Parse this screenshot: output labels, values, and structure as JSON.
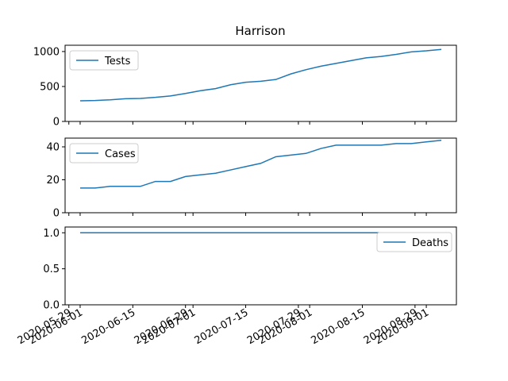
{
  "chart_data": {
    "type": "line",
    "title": "Harrison",
    "x": [
      "2020-06-01",
      "2020-06-05",
      "2020-06-09",
      "2020-06-13",
      "2020-06-17",
      "2020-06-21",
      "2020-06-25",
      "2020-06-29",
      "2020-07-03",
      "2020-07-07",
      "2020-07-11",
      "2020-07-15",
      "2020-07-19",
      "2020-07-23",
      "2020-07-27",
      "2020-07-31",
      "2020-08-04",
      "2020-08-08",
      "2020-08-12",
      "2020-08-16",
      "2020-08-20",
      "2020-08-24",
      "2020-08-28",
      "2020-09-01",
      "2020-09-05"
    ],
    "xlim": [
      "2020-05-28",
      "2020-09-09"
    ],
    "xticks": [
      "2020-05-29",
      "2020-06-01",
      "2020-06-15",
      "2020-06-29",
      "2020-07-01",
      "2020-07-15",
      "2020-07-29",
      "2020-08-01",
      "2020-08-15",
      "2020-08-29",
      "2020-09-01"
    ],
    "panels": [
      {
        "ylim": [
          0,
          1090
        ],
        "yticks": [
          0,
          500,
          1000
        ],
        "legend": "upper left",
        "series": [
          {
            "name": "Tests",
            "color": "#1f77b4",
            "values": [
              295,
              300,
              310,
              325,
              330,
              345,
              365,
              400,
              440,
              470,
              525,
              560,
              575,
              600,
              680,
              740,
              790,
              830,
              870,
              910,
              930,
              960,
              995,
              1010,
              1030
            ]
          }
        ]
      },
      {
        "ylim": [
          0,
          45.3
        ],
        "yticks": [
          0,
          20,
          40
        ],
        "legend": "upper left",
        "series": [
          {
            "name": "Cases",
            "color": "#1f77b4",
            "values": [
              15,
              15,
              16,
              16,
              16,
              19,
              19,
              22,
              23,
              24,
              26,
              28,
              30,
              34,
              35,
              36,
              39,
              41,
              41,
              41,
              41,
              42,
              42,
              43,
              44
            ]
          }
        ]
      },
      {
        "ylim": [
          0,
          1.08
        ],
        "yticks": [
          {
            "value": 0,
            "label": "0.0"
          },
          {
            "value": 0.5,
            "label": "0.5"
          },
          {
            "value": 1,
            "label": "1.0"
          }
        ],
        "legend": "upper right",
        "series": [
          {
            "name": "Deaths",
            "color": "#1f77b4",
            "values": [
              1,
              1,
              1,
              1,
              1,
              1,
              1,
              1,
              1,
              1,
              1,
              1,
              1,
              1,
              1,
              1,
              1,
              1,
              1,
              1,
              1,
              1,
              1,
              1,
              1
            ]
          }
        ]
      }
    ]
  }
}
